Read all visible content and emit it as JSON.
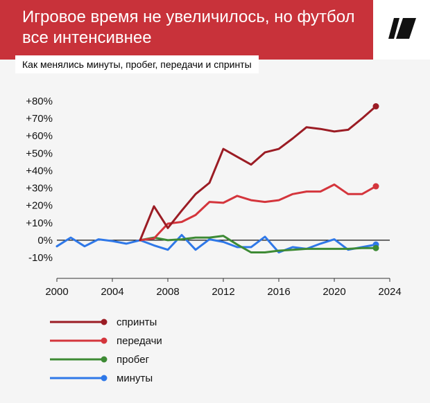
{
  "header": {
    "title": "Игровое время не увеличилось, но футбол все интенсивнее",
    "subtitle": "Как менялись минуты, пробег, передачи и спринты"
  },
  "logo": {
    "icon": "brand-logo-icon"
  },
  "colors": {
    "header_bg": "#c8323a",
    "sprints": "#9b1c24",
    "passes": "#d4353c",
    "distance": "#3d8a34",
    "minutes": "#2f78e8"
  },
  "chart_data": {
    "type": "line",
    "xlim": [
      2000,
      2024
    ],
    "ylim": [
      -10,
      80
    ],
    "x_ticks": [
      2000,
      2004,
      2008,
      2012,
      2016,
      2020,
      2024
    ],
    "x_tick_labels": [
      "2000",
      "2004",
      "2008",
      "2012",
      "2016",
      "2020",
      "2024"
    ],
    "y_ticks": [
      80,
      70,
      60,
      50,
      40,
      30,
      20,
      10,
      0,
      -10
    ],
    "y_tick_labels": [
      "+80%",
      "+70%",
      "+60%",
      "+50%",
      "+40%",
      "+30%",
      "+20%",
      "+10%",
      "0%",
      "-10%"
    ],
    "zero_line": true,
    "legend_position": "bottom-left",
    "series": [
      {
        "key": "sprints",
        "name": "спринты",
        "color": "#9b1c24",
        "x": [
          2006,
          2007,
          2008,
          2009,
          2010,
          2011,
          2012,
          2013,
          2014,
          2015,
          2016,
          2017,
          2018,
          2019,
          2020,
          2021,
          2022,
          2023
        ],
        "values": [
          0,
          19.5,
          7,
          17,
          26.5,
          33,
          52.5,
          48,
          43.5,
          50.5,
          52.5,
          58.5,
          65,
          64,
          62.5,
          63.5,
          70,
          77
        ]
      },
      {
        "key": "passes",
        "name": "передачи",
        "color": "#d4353c",
        "x": [
          2006,
          2007,
          2008,
          2009,
          2010,
          2011,
          2012,
          2013,
          2014,
          2015,
          2016,
          2017,
          2018,
          2019,
          2020,
          2021,
          2022,
          2023
        ],
        "values": [
          0,
          1,
          9.5,
          10.5,
          14.5,
          22,
          21.5,
          25.5,
          23,
          22,
          23,
          26.5,
          28,
          28,
          32,
          26.5,
          26.5,
          31
        ]
      },
      {
        "key": "distance",
        "name": "пробег",
        "color": "#3d8a34",
        "x": [
          2006,
          2007,
          2008,
          2009,
          2010,
          2011,
          2012,
          2013,
          2014,
          2015,
          2016,
          2017,
          2018,
          2019,
          2020,
          2021,
          2022,
          2023
        ],
        "values": [
          0,
          1.5,
          0,
          0.5,
          1.5,
          1.5,
          2.5,
          -2.5,
          -7,
          -7,
          -6,
          -5.5,
          -5,
          -5,
          -5,
          -5,
          -4.5,
          -4.5
        ]
      },
      {
        "key": "minutes",
        "name": "минуты",
        "color": "#2f78e8",
        "x": [
          2000,
          2001,
          2002,
          2003,
          2004,
          2005,
          2006,
          2007,
          2008,
          2009,
          2010,
          2011,
          2012,
          2013,
          2014,
          2015,
          2016,
          2017,
          2018,
          2019,
          2020,
          2021,
          2022,
          2023
        ],
        "values": [
          -3.5,
          1.5,
          -3.5,
          0.5,
          -0.5,
          -2,
          0,
          -3,
          -5.5,
          3,
          -5.5,
          0.5,
          -1,
          -4,
          -4,
          2,
          -7,
          -4,
          -5,
          -2,
          0.5,
          -5.5,
          -4,
          -2.5
        ]
      }
    ]
  }
}
